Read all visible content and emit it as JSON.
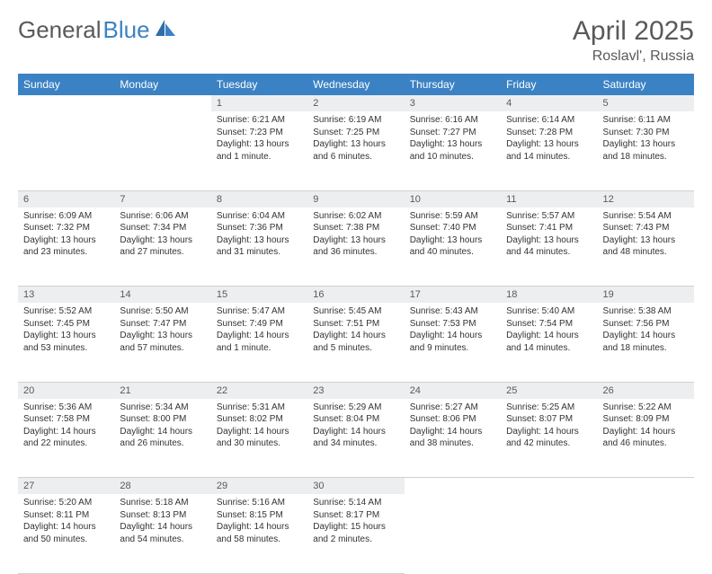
{
  "brand": {
    "first": "General",
    "second": "Blue"
  },
  "title": "April 2025",
  "location": "Roslavl', Russia",
  "colors": {
    "header_bg": "#3b82c4",
    "header_text": "#ffffff",
    "daynum_bg": "#eceef0",
    "text_muted": "#59595b",
    "body_text": "#333333",
    "divider": "#d0d0d0"
  },
  "dayHeaders": [
    "Sunday",
    "Monday",
    "Tuesday",
    "Wednesday",
    "Thursday",
    "Friday",
    "Saturday"
  ],
  "weeks": [
    [
      null,
      null,
      {
        "n": "1",
        "sr": "Sunrise: 6:21 AM",
        "ss": "Sunset: 7:23 PM",
        "d1": "Daylight: 13 hours",
        "d2": "and 1 minute."
      },
      {
        "n": "2",
        "sr": "Sunrise: 6:19 AM",
        "ss": "Sunset: 7:25 PM",
        "d1": "Daylight: 13 hours",
        "d2": "and 6 minutes."
      },
      {
        "n": "3",
        "sr": "Sunrise: 6:16 AM",
        "ss": "Sunset: 7:27 PM",
        "d1": "Daylight: 13 hours",
        "d2": "and 10 minutes."
      },
      {
        "n": "4",
        "sr": "Sunrise: 6:14 AM",
        "ss": "Sunset: 7:28 PM",
        "d1": "Daylight: 13 hours",
        "d2": "and 14 minutes."
      },
      {
        "n": "5",
        "sr": "Sunrise: 6:11 AM",
        "ss": "Sunset: 7:30 PM",
        "d1": "Daylight: 13 hours",
        "d2": "and 18 minutes."
      }
    ],
    [
      {
        "n": "6",
        "sr": "Sunrise: 6:09 AM",
        "ss": "Sunset: 7:32 PM",
        "d1": "Daylight: 13 hours",
        "d2": "and 23 minutes."
      },
      {
        "n": "7",
        "sr": "Sunrise: 6:06 AM",
        "ss": "Sunset: 7:34 PM",
        "d1": "Daylight: 13 hours",
        "d2": "and 27 minutes."
      },
      {
        "n": "8",
        "sr": "Sunrise: 6:04 AM",
        "ss": "Sunset: 7:36 PM",
        "d1": "Daylight: 13 hours",
        "d2": "and 31 minutes."
      },
      {
        "n": "9",
        "sr": "Sunrise: 6:02 AM",
        "ss": "Sunset: 7:38 PM",
        "d1": "Daylight: 13 hours",
        "d2": "and 36 minutes."
      },
      {
        "n": "10",
        "sr": "Sunrise: 5:59 AM",
        "ss": "Sunset: 7:40 PM",
        "d1": "Daylight: 13 hours",
        "d2": "and 40 minutes."
      },
      {
        "n": "11",
        "sr": "Sunrise: 5:57 AM",
        "ss": "Sunset: 7:41 PM",
        "d1": "Daylight: 13 hours",
        "d2": "and 44 minutes."
      },
      {
        "n": "12",
        "sr": "Sunrise: 5:54 AM",
        "ss": "Sunset: 7:43 PM",
        "d1": "Daylight: 13 hours",
        "d2": "and 48 minutes."
      }
    ],
    [
      {
        "n": "13",
        "sr": "Sunrise: 5:52 AM",
        "ss": "Sunset: 7:45 PM",
        "d1": "Daylight: 13 hours",
        "d2": "and 53 minutes."
      },
      {
        "n": "14",
        "sr": "Sunrise: 5:50 AM",
        "ss": "Sunset: 7:47 PM",
        "d1": "Daylight: 13 hours",
        "d2": "and 57 minutes."
      },
      {
        "n": "15",
        "sr": "Sunrise: 5:47 AM",
        "ss": "Sunset: 7:49 PM",
        "d1": "Daylight: 14 hours",
        "d2": "and 1 minute."
      },
      {
        "n": "16",
        "sr": "Sunrise: 5:45 AM",
        "ss": "Sunset: 7:51 PM",
        "d1": "Daylight: 14 hours",
        "d2": "and 5 minutes."
      },
      {
        "n": "17",
        "sr": "Sunrise: 5:43 AM",
        "ss": "Sunset: 7:53 PM",
        "d1": "Daylight: 14 hours",
        "d2": "and 9 minutes."
      },
      {
        "n": "18",
        "sr": "Sunrise: 5:40 AM",
        "ss": "Sunset: 7:54 PM",
        "d1": "Daylight: 14 hours",
        "d2": "and 14 minutes."
      },
      {
        "n": "19",
        "sr": "Sunrise: 5:38 AM",
        "ss": "Sunset: 7:56 PM",
        "d1": "Daylight: 14 hours",
        "d2": "and 18 minutes."
      }
    ],
    [
      {
        "n": "20",
        "sr": "Sunrise: 5:36 AM",
        "ss": "Sunset: 7:58 PM",
        "d1": "Daylight: 14 hours",
        "d2": "and 22 minutes."
      },
      {
        "n": "21",
        "sr": "Sunrise: 5:34 AM",
        "ss": "Sunset: 8:00 PM",
        "d1": "Daylight: 14 hours",
        "d2": "and 26 minutes."
      },
      {
        "n": "22",
        "sr": "Sunrise: 5:31 AM",
        "ss": "Sunset: 8:02 PM",
        "d1": "Daylight: 14 hours",
        "d2": "and 30 minutes."
      },
      {
        "n": "23",
        "sr": "Sunrise: 5:29 AM",
        "ss": "Sunset: 8:04 PM",
        "d1": "Daylight: 14 hours",
        "d2": "and 34 minutes."
      },
      {
        "n": "24",
        "sr": "Sunrise: 5:27 AM",
        "ss": "Sunset: 8:06 PM",
        "d1": "Daylight: 14 hours",
        "d2": "and 38 minutes."
      },
      {
        "n": "25",
        "sr": "Sunrise: 5:25 AM",
        "ss": "Sunset: 8:07 PM",
        "d1": "Daylight: 14 hours",
        "d2": "and 42 minutes."
      },
      {
        "n": "26",
        "sr": "Sunrise: 5:22 AM",
        "ss": "Sunset: 8:09 PM",
        "d1": "Daylight: 14 hours",
        "d2": "and 46 minutes."
      }
    ],
    [
      {
        "n": "27",
        "sr": "Sunrise: 5:20 AM",
        "ss": "Sunset: 8:11 PM",
        "d1": "Daylight: 14 hours",
        "d2": "and 50 minutes."
      },
      {
        "n": "28",
        "sr": "Sunrise: 5:18 AM",
        "ss": "Sunset: 8:13 PM",
        "d1": "Daylight: 14 hours",
        "d2": "and 54 minutes."
      },
      {
        "n": "29",
        "sr": "Sunrise: 5:16 AM",
        "ss": "Sunset: 8:15 PM",
        "d1": "Daylight: 14 hours",
        "d2": "and 58 minutes."
      },
      {
        "n": "30",
        "sr": "Sunrise: 5:14 AM",
        "ss": "Sunset: 8:17 PM",
        "d1": "Daylight: 15 hours",
        "d2": "and 2 minutes."
      },
      null,
      null,
      null
    ]
  ]
}
